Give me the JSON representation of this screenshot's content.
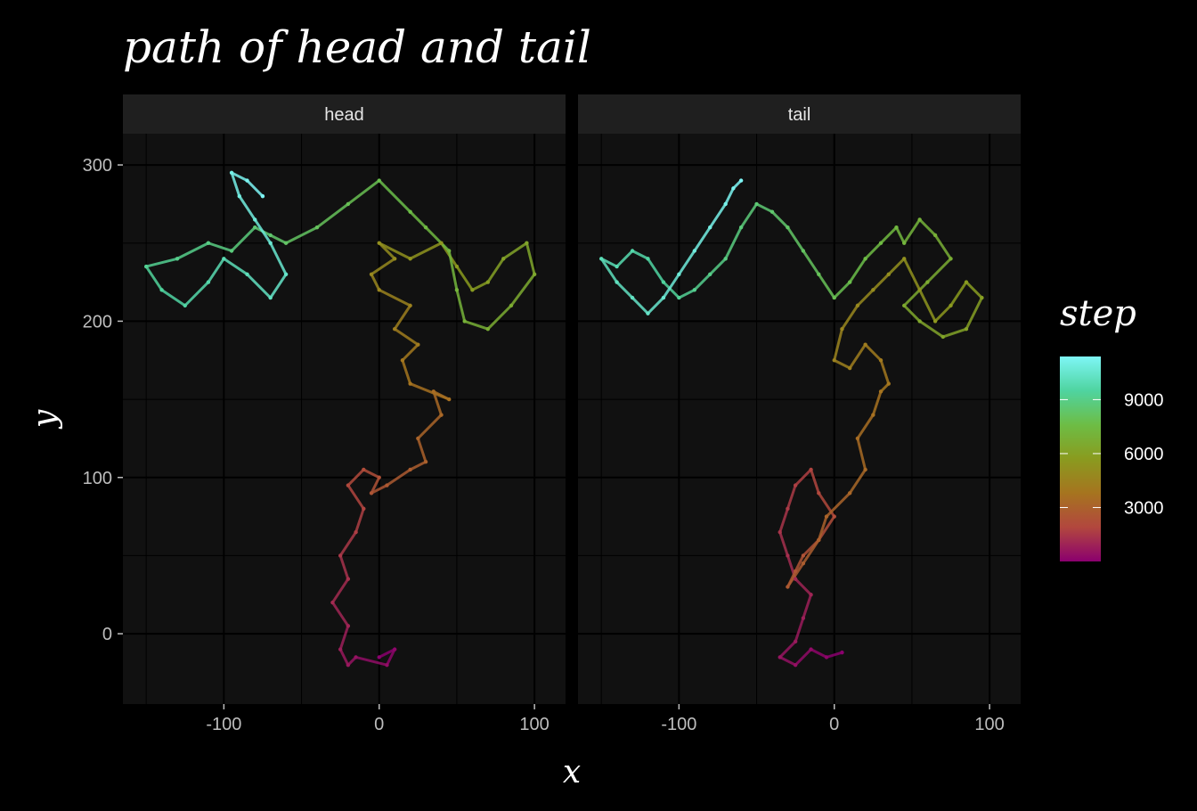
{
  "chart_data": {
    "type": "line",
    "title": "path of head and tail",
    "xlabel": "x",
    "ylabel": "y",
    "xlim": [
      -165,
      120
    ],
    "ylim": [
      -45,
      320
    ],
    "x_ticks": [
      -100,
      0,
      100
    ],
    "y_ticks": [
      0,
      100,
      200,
      300
    ],
    "x_tick_labels": [
      "-100",
      "0",
      "100"
    ],
    "y_tick_labels": [
      "0",
      "100",
      "200",
      "300"
    ],
    "grid": true,
    "legend": {
      "title": "step",
      "placement": "right",
      "type": "colorbar",
      "range": [
        0,
        11400
      ],
      "ticks": [
        3000,
        6000,
        9000
      ],
      "tick_labels": [
        "3000",
        "6000",
        "9000"
      ],
      "colors": [
        "#8b006e",
        "#b2473e",
        "#a6741f",
        "#8a9b1f",
        "#6dbd45",
        "#4fd4a0",
        "#7ef6f6"
      ]
    },
    "facets": [
      {
        "label": "head",
        "series": {
          "name": "head",
          "x": [
            0,
            10,
            5,
            -15,
            -20,
            -25,
            -20,
            -30,
            -20,
            -25,
            -15,
            -10,
            -20,
            -10,
            0,
            -5,
            5,
            20,
            30,
            25,
            40,
            35,
            45,
            20,
            15,
            25,
            10,
            20,
            0,
            -5,
            10,
            0,
            20,
            40,
            50,
            60,
            70,
            80,
            95,
            100,
            85,
            70,
            55,
            50,
            45,
            30,
            20,
            0,
            -20,
            -40,
            -60,
            -70,
            -80,
            -95,
            -110,
            -130,
            -150,
            -140,
            -125,
            -110,
            -100,
            -85,
            -70,
            -60,
            -70,
            -80,
            -90,
            -95,
            -85,
            -75
          ],
          "y": [
            -15,
            -10,
            -20,
            -15,
            -20,
            -10,
            5,
            20,
            35,
            50,
            65,
            80,
            95,
            105,
            100,
            90,
            95,
            105,
            110,
            125,
            140,
            155,
            150,
            160,
            175,
            185,
            195,
            210,
            220,
            230,
            240,
            250,
            240,
            250,
            235,
            220,
            225,
            240,
            250,
            230,
            210,
            195,
            200,
            220,
            245,
            260,
            270,
            290,
            275,
            260,
            250,
            255,
            260,
            245,
            250,
            240,
            235,
            220,
            210,
            225,
            240,
            230,
            215,
            230,
            250,
            265,
            280,
            295,
            290,
            280
          ]
        }
      },
      {
        "label": "tail",
        "series": {
          "name": "tail",
          "x": [
            5,
            -5,
            -15,
            -25,
            -35,
            -25,
            -20,
            -15,
            -25,
            -30,
            -35,
            -30,
            -25,
            -15,
            -10,
            0,
            -10,
            -20,
            -25,
            -30,
            -20,
            -10,
            -5,
            10,
            20,
            15,
            25,
            30,
            35,
            30,
            20,
            10,
            0,
            5,
            15,
            25,
            35,
            45,
            55,
            65,
            75,
            85,
            95,
            85,
            70,
            55,
            45,
            60,
            75,
            65,
            55,
            45,
            40,
            30,
            20,
            10,
            0,
            -10,
            -20,
            -30,
            -40,
            -50,
            -60,
            -70,
            -80,
            -90,
            -100,
            -110,
            -120,
            -130,
            -140,
            -150,
            -140,
            -130,
            -120,
            -110,
            -100,
            -90,
            -80,
            -70,
            -65,
            -60
          ],
          "y": [
            -12,
            -15,
            -10,
            -20,
            -15,
            -5,
            10,
            25,
            35,
            50,
            65,
            80,
            95,
            105,
            90,
            75,
            60,
            50,
            40,
            30,
            45,
            60,
            75,
            90,
            105,
            125,
            140,
            155,
            160,
            175,
            185,
            170,
            175,
            195,
            210,
            220,
            230,
            240,
            220,
            200,
            210,
            225,
            215,
            195,
            190,
            200,
            210,
            225,
            240,
            255,
            265,
            250,
            260,
            250,
            240,
            225,
            215,
            230,
            245,
            260,
            270,
            275,
            260,
            240,
            230,
            220,
            215,
            225,
            240,
            245,
            235,
            240,
            225,
            215,
            205,
            215,
            230,
            245,
            260,
            275,
            285,
            290
          ]
        }
      }
    ]
  }
}
